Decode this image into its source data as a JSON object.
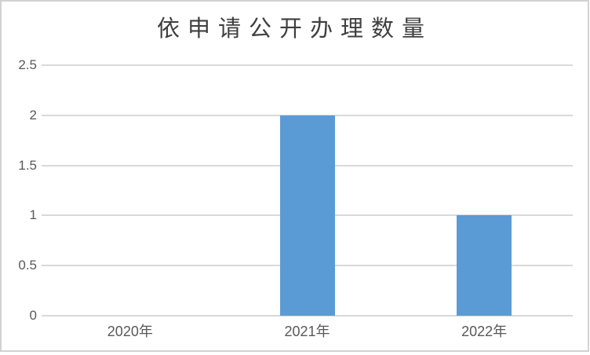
{
  "chart_data": {
    "type": "bar",
    "title": "依申请公开办理数量",
    "categories": [
      "2020年",
      "2021年",
      "2022年"
    ],
    "values": [
      0,
      2,
      1
    ],
    "ylim": [
      0,
      2.5
    ],
    "yticks": [
      0,
      0.5,
      1,
      1.5,
      2,
      2.5
    ],
    "ytick_labels": [
      "0",
      "0.5",
      "1",
      "1.5",
      "2",
      "2.5"
    ],
    "grid": "horizontal",
    "legend": "none",
    "colors": {
      "bar": "#5B9BD5",
      "gridline": "#D9D9D9",
      "axis_label": "#595959",
      "title": "#3F3F3F",
      "frame_border": "#D2D2D2",
      "background": "#FFFFFF"
    }
  }
}
